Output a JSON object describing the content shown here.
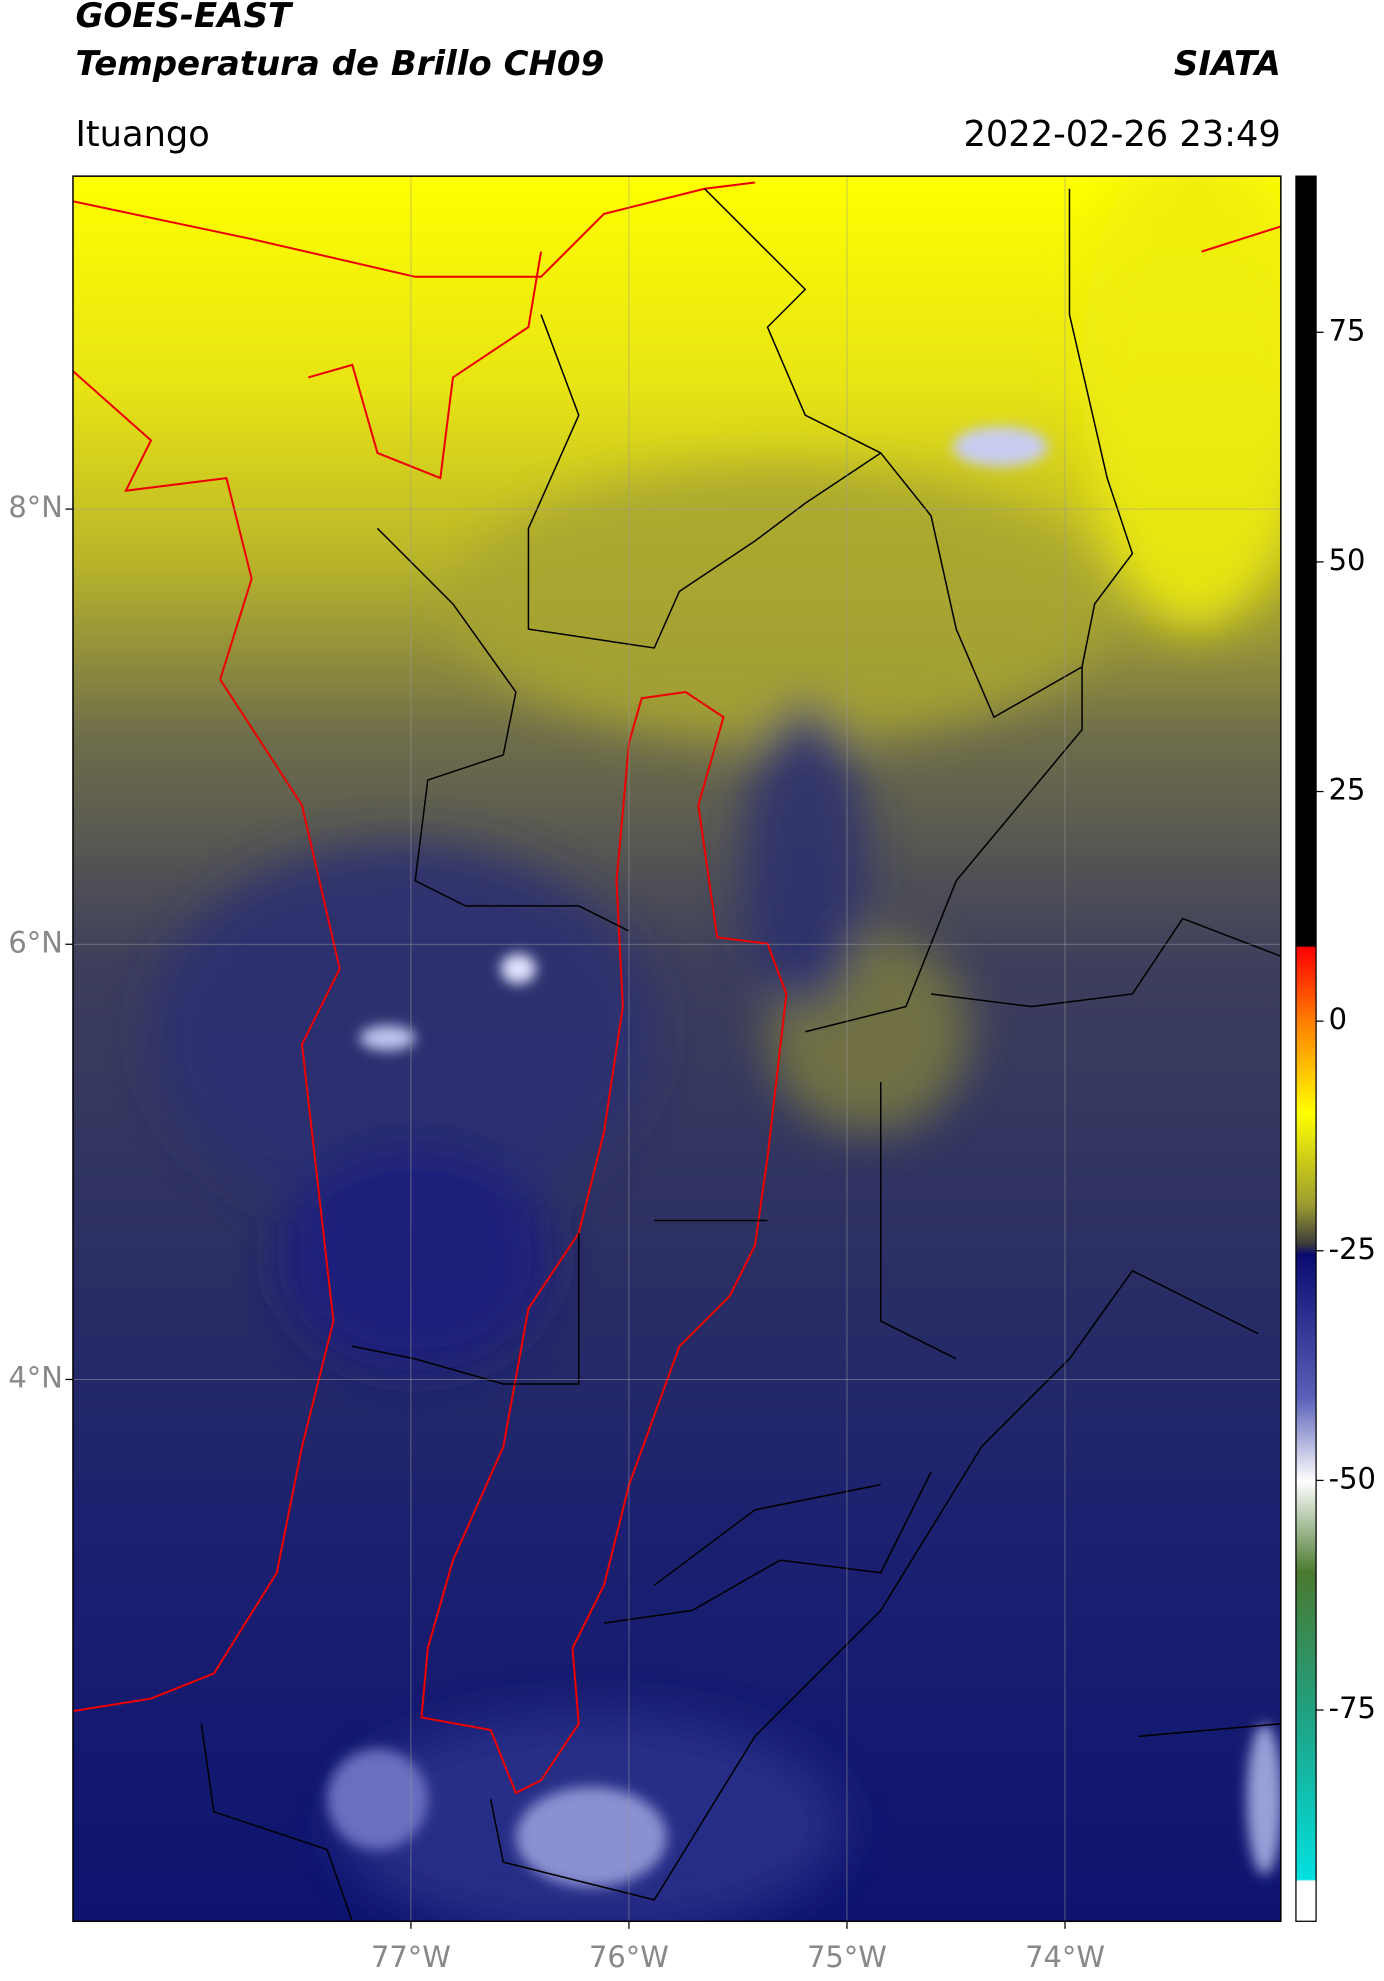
{
  "header": {
    "title": "GOES-EAST",
    "subtitle": "Temperatura de Brillo CH09",
    "source": "SIATA",
    "location": "Ituango",
    "datetime": "2022-02-26 23:49"
  },
  "map": {
    "xlim": [
      -78.55,
      -73.01
    ],
    "ylim": [
      1.51,
      9.53
    ],
    "xticks": [
      {
        "value": -77,
        "label": "77°W"
      },
      {
        "value": -76,
        "label": "76°W"
      },
      {
        "value": -75,
        "label": "75°W"
      },
      {
        "value": -74,
        "label": "74°W"
      }
    ],
    "yticks": [
      {
        "value": 8,
        "label": "8°N"
      },
      {
        "value": 6,
        "label": "6°N"
      },
      {
        "value": 4,
        "label": "4°N"
      }
    ],
    "grid": true
  },
  "colorbar": {
    "lim": [
      -98,
      92
    ],
    "ticks": [
      75,
      50,
      25,
      0,
      -25,
      -50,
      -75
    ]
  }
}
